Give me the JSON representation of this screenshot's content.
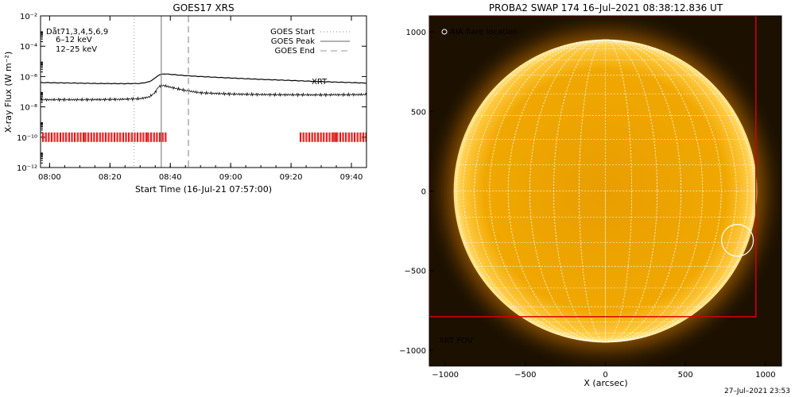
{
  "left_panel": {
    "chart_data": {
      "type": "line",
      "title": "GOES17 XRS",
      "xlabel": "Start Time (16-Jul-21 07:57:00)",
      "ylabel": "X-ray Flux (W m⁻²)",
      "y_log": true,
      "ylim": [
        1e-12,
        0.01
      ],
      "x_ticks": [
        "08:00",
        "08:20",
        "08:40",
        "09:00",
        "09:20",
        "09:40"
      ],
      "y_ticks": [
        "10⁻¹²",
        "10⁻¹⁰",
        "10⁻⁸",
        "10⁻⁶",
        "10⁻⁴",
        "10⁻²"
      ],
      "info_lines": [
        {
          "text": "Dåt71,3,4,5,6,9",
          "color": "#000000"
        },
        {
          "text": "6–12 keV",
          "color": "#c000c0"
        },
        {
          "text": "12–25 keV",
          "color": "#00c000"
        }
      ],
      "legend": [
        {
          "label": "GOES Start",
          "style": "dotted"
        },
        {
          "label": "GOES Peak",
          "style": "solid"
        },
        {
          "label": "GOES End",
          "style": "dashed"
        }
      ],
      "markers": {
        "start": "08:28",
        "peak": "08:37",
        "end": "08:46"
      },
      "xrt_label": "XRT",
      "series": [
        {
          "color": "#000000",
          "x": [
            "07:57",
            "08:05",
            "08:15",
            "08:25",
            "08:30",
            "08:33",
            "08:35",
            "08:36",
            "08:37",
            "08:38",
            "08:40",
            "08:45",
            "08:50",
            "09:00",
            "09:10",
            "09:20",
            "09:30",
            "09:40",
            "09:45"
          ],
          "values": [
            4e-07,
            3.8e-07,
            3.5e-07,
            3.4e-07,
            3.5e-07,
            4.5e-07,
            8e-07,
            1.2e-06,
            1.4e-06,
            1.5e-06,
            1.4e-06,
            1.15e-06,
            1e-06,
            8e-07,
            6.5e-07,
            5.5e-07,
            4.6e-07,
            4e-07,
            3.7e-07
          ]
        },
        {
          "color": "#000000",
          "x": [
            "07:57",
            "08:05",
            "08:15",
            "08:25",
            "08:30",
            "08:33",
            "08:35",
            "08:36",
            "08:37",
            "08:38",
            "08:40",
            "08:45",
            "08:50",
            "09:00",
            "09:10",
            "09:20",
            "09:30",
            "09:40",
            "09:45"
          ],
          "values": [
            3e-08,
            3e-08,
            3e-08,
            3.2e-08,
            3.5e-08,
            4.5e-08,
            9e-08,
            2e-07,
            2.6e-07,
            2.5e-07,
            2e-07,
            1.2e-07,
            8.5e-08,
            7e-08,
            6.5e-08,
            6.3e-08,
            6.2e-08,
            6.4e-08,
            6.5e-08
          ]
        }
      ],
      "xrt_coverage": [
        [
          "07:57",
          "08:39"
        ],
        [
          "09:23",
          "09:45"
        ]
      ]
    }
  },
  "right_panel": {
    "chart_data": {
      "type": "heatmap",
      "title": "PROBA2 SWAP 174 16–Jul–2021 08:38:12.836 UT",
      "xlabel": "X (arcsec)",
      "ylabel": "",
      "xlim": [
        -1100,
        1100
      ],
      "ylim": [
        -1100,
        1100
      ],
      "x_ticks": [
        "−1000",
        "−500",
        "0",
        "500",
        "1000"
      ],
      "y_ticks": [
        "1000",
        "500",
        "0",
        "−500",
        "−1000"
      ],
      "solar_radius_arcsec": 945,
      "grid_spacing_deg": 10,
      "flare_location": {
        "x": 825,
        "y": -310,
        "label": "AIA flare location"
      },
      "xrt_fov": {
        "x0": -1100,
        "x1": 940,
        "y0": -790,
        "y1": 1100,
        "label": "XRT FOV"
      },
      "colors": {
        "background": "#1c1100",
        "disk": "#f0a400",
        "limb": "#ffe080",
        "grid": "#ffffff",
        "fov": "#d80000"
      }
    }
  },
  "footer": {
    "timestamp": "27–Jul–2021 23:53"
  }
}
